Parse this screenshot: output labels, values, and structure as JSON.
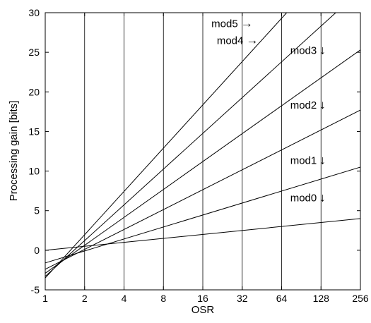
{
  "chart_data": {
    "type": "line",
    "xlabel": "OSR",
    "ylabel": "Processing gain [bits]",
    "x_scale": "log2",
    "xlim": [
      1,
      256
    ],
    "ylim": [
      -5,
      30
    ],
    "grid": "vertical",
    "x_ticks": [
      1,
      2,
      4,
      8,
      16,
      32,
      64,
      128,
      256
    ],
    "x_tick_labels": [
      "1",
      "2",
      "4",
      "8",
      "16",
      "32",
      "64",
      "128",
      "256"
    ],
    "y_ticks": [
      -5,
      0,
      5,
      10,
      15,
      20,
      25,
      30
    ],
    "y_tick_labels": [
      "-5",
      "0",
      "5",
      "10",
      "15",
      "20",
      "25",
      "30"
    ],
    "series": [
      {
        "name": "mod0",
        "x": [
          1,
          256
        ],
        "y": [
          0,
          4.0
        ],
        "label": "mod0",
        "arrow": "↓",
        "label_anchor": [
          128,
          6
        ]
      },
      {
        "name": "mod1",
        "x": [
          1,
          256
        ],
        "y": [
          -1.6,
          10.5
        ],
        "label": "mod1",
        "arrow": "↓",
        "label_anchor": [
          128,
          10.7
        ]
      },
      {
        "name": "mod2",
        "x": [
          1,
          256
        ],
        "y": [
          -2.4,
          17.7
        ],
        "label": "mod2",
        "arrow": "↓",
        "label_anchor": [
          128,
          17.7
        ]
      },
      {
        "name": "mod3",
        "x": [
          1,
          256
        ],
        "y": [
          -2.9,
          25.3
        ],
        "label": "mod3",
        "arrow": "↓",
        "label_anchor": [
          128,
          24.6
        ]
      },
      {
        "name": "mod4",
        "x": [
          1,
          166
        ],
        "y": [
          -3.3,
          30
        ],
        "label": "mod4",
        "arrow": "→",
        "label_anchor": [
          44,
          26.5
        ]
      },
      {
        "name": "mod5",
        "x": [
          1,
          70
        ],
        "y": [
          -3.5,
          30
        ],
        "label": "mod5",
        "arrow": "→",
        "label_anchor": [
          40,
          28.6
        ]
      }
    ]
  }
}
